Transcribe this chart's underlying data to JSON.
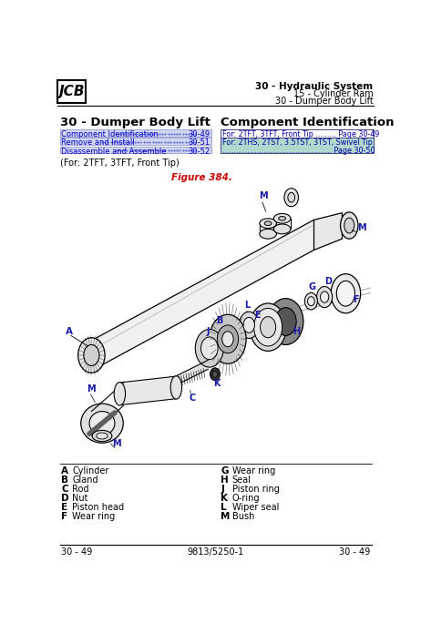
{
  "title_section": "30 - Hydraulic System",
  "subtitle1": "15 - Cylinder Ram",
  "subtitle2": "30 - Dumper Body Lift",
  "section_title": "30 - Dumper Body Lift",
  "component_id_title": "Component Identification",
  "toc_items": [
    {
      "text": "Component Identification",
      "page": "30-49"
    },
    {
      "text": "Remove and Install",
      "page": "30-51"
    },
    {
      "text": "Disassemble and Assemble",
      "page": "30-52"
    }
  ],
  "comp_id_box1_text": "For: 2TFT, 3TFT, Front Tip ......... Page 30-49",
  "comp_id_box2_line1": "For: 2THS, 2TST, 3.5TST, 3TST, Swivel Tip",
  "comp_id_box2_line2": "................................................ Page 30-50",
  "for_note": "(For: 2TFT, 3TFT, Front Tip)",
  "figure_label": "Figure 384.",
  "parts_left": [
    {
      "letter": "A",
      "name": "Cylinder"
    },
    {
      "letter": "B",
      "name": "Gland"
    },
    {
      "letter": "C",
      "name": "Rod"
    },
    {
      "letter": "D",
      "name": "Nut"
    },
    {
      "letter": "E",
      "name": "Piston head"
    },
    {
      "letter": "F",
      "name": "Wear ring"
    }
  ],
  "parts_right": [
    {
      "letter": "G",
      "name": "Wear ring"
    },
    {
      "letter": "H",
      "name": "Seal"
    },
    {
      "letter": "J",
      "name": "Piston ring"
    },
    {
      "letter": "K",
      "name": "O-ring"
    },
    {
      "letter": "L",
      "name": "Wiper seal"
    },
    {
      "letter": "M",
      "name": "Bush"
    }
  ],
  "footer_left": "30 - 49",
  "footer_center": "9813/5250-1",
  "footer_right": "30 - 49",
  "bg_color": "#ffffff",
  "text_color": "#000000",
  "fig_label_color": "#cc0000"
}
